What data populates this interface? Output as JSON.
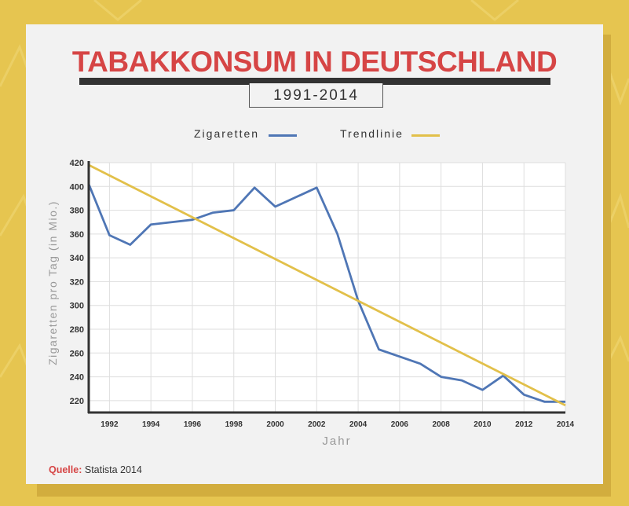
{
  "header": {
    "title": "TABAKKONSUM IN DEUTSCHLAND",
    "subtitle": "1991-2014"
  },
  "legend": [
    {
      "name": "Zigaretten",
      "color": "#4f76b5"
    },
    {
      "name": "Trendlinie",
      "color": "#e2c04a"
    }
  ],
  "source": {
    "label": "Quelle:",
    "text": "Statista 2014"
  },
  "chart_data": {
    "type": "line",
    "xlabel": "Jahr",
    "ylabel": "Zigaretten pro Tag (in Mio.)",
    "xlim": [
      1991,
      2014
    ],
    "ylim": [
      210,
      420
    ],
    "x_ticks": [
      1992,
      1994,
      1996,
      1998,
      2000,
      2002,
      2004,
      2006,
      2008,
      2010,
      2012,
      2014
    ],
    "y_ticks": [
      220,
      240,
      260,
      280,
      300,
      320,
      340,
      360,
      380,
      400,
      420
    ],
    "grid": true,
    "legend_position": "top",
    "series": [
      {
        "name": "Zigaretten",
        "color": "#4f76b5",
        "x": [
          1991,
          1992,
          1993,
          1994,
          1995,
          1996,
          1997,
          1998,
          1999,
          2000,
          2001,
          2002,
          2003,
          2004,
          2005,
          2006,
          2007,
          2008,
          2009,
          2010,
          2011,
          2012,
          2013,
          2014
        ],
        "y": [
          402,
          359,
          351,
          368,
          370,
          372,
          378,
          380,
          399,
          383,
          391,
          399,
          360,
          304,
          263,
          257,
          251,
          240,
          237,
          229,
          241,
          225,
          219,
          219
        ]
      },
      {
        "name": "Trendlinie",
        "color": "#e2c04a",
        "x": [
          1991,
          2014
        ],
        "y": [
          418,
          216
        ]
      }
    ]
  }
}
